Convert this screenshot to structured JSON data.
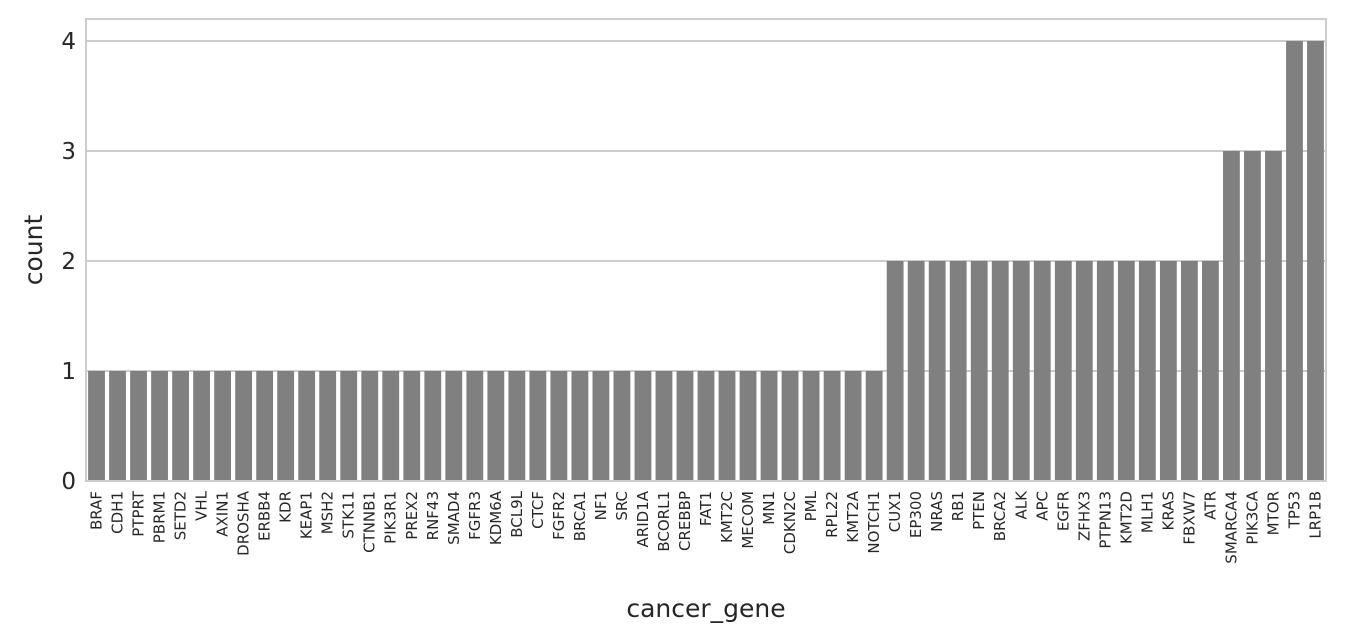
{
  "chart_data": {
    "type": "bar",
    "title": "",
    "xlabel": "cancer_gene",
    "ylabel": "count",
    "ylim": [
      0,
      4.2
    ],
    "yticks": [
      0,
      1,
      2,
      3,
      4
    ],
    "grid": "y",
    "bar_color": "#808080",
    "grid_color": "#cccccc",
    "frame_color": "#cccccc",
    "categories": [
      "BRAF",
      "CDH1",
      "PTPRT",
      "PBRM1",
      "SETD2",
      "VHL",
      "AXIN1",
      "DROSHA",
      "ERBB4",
      "KDR",
      "KEAP1",
      "MSH2",
      "STK11",
      "CTNNB1",
      "PIK3R1",
      "PREX2",
      "RNF43",
      "SMAD4",
      "FGFR3",
      "KDM6A",
      "BCL9L",
      "CTCF",
      "FGFR2",
      "BRCA1",
      "NF1",
      "SRC",
      "ARID1A",
      "BCORL1",
      "CREBBP",
      "FAT1",
      "KMT2C",
      "MECOM",
      "MN1",
      "CDKN2C",
      "PML",
      "RPL22",
      "KMT2A",
      "NOTCH1",
      "CUX1",
      "EP300",
      "NRAS",
      "RB1",
      "PTEN",
      "BRCA2",
      "ALK",
      "APC",
      "EGFR",
      "ZFHX3",
      "PTPN13",
      "KMT2D",
      "MLH1",
      "KRAS",
      "FBXW7",
      "ATR",
      "SMARCA4",
      "PIK3CA",
      "MTOR",
      "TP53",
      "LRP1B"
    ],
    "values": [
      1,
      1,
      1,
      1,
      1,
      1,
      1,
      1,
      1,
      1,
      1,
      1,
      1,
      1,
      1,
      1,
      1,
      1,
      1,
      1,
      1,
      1,
      1,
      1,
      1,
      1,
      1,
      1,
      1,
      1,
      1,
      1,
      1,
      1,
      1,
      1,
      1,
      1,
      2,
      2,
      2,
      2,
      2,
      2,
      2,
      2,
      2,
      2,
      2,
      2,
      2,
      2,
      2,
      2,
      3,
      3,
      3,
      4,
      4
    ]
  }
}
